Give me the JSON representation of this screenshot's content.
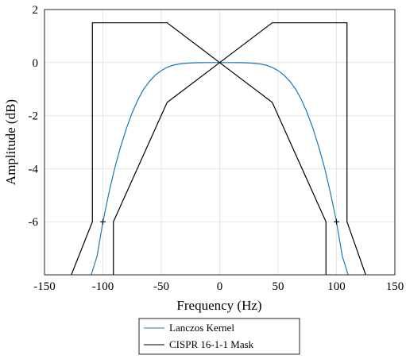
{
  "chart_data": {
    "type": "line",
    "xlabel": "Frequency (Hz)",
    "ylabel": "Amplitude (dB)",
    "xlim": [
      -150,
      150
    ],
    "ylim": [
      -8,
      2
    ],
    "x_ticks": [
      -150,
      -100,
      -50,
      0,
      50,
      100,
      150
    ],
    "x_tick_labels": [
      "-150",
      "-100",
      "-50",
      "0",
      "50",
      "100",
      "150"
    ],
    "y_ticks": [
      2,
      0,
      -2,
      -4,
      -6
    ],
    "y_tick_labels": [
      "2",
      "0",
      "-2",
      "-4",
      "-6"
    ],
    "grid": true,
    "legend_position": "bottom-outside",
    "series": [
      {
        "name": "Lanczos Kernel",
        "color": "#1f77b4",
        "style": "line",
        "x": [
          -110,
          -105,
          -100,
          -95,
          -90,
          -85,
          -80,
          -75,
          -70,
          -65,
          -60,
          -55,
          -50,
          -45,
          -40,
          -35,
          -30,
          -25,
          -20,
          -15,
          -10,
          -5,
          0,
          5,
          10,
          15,
          20,
          25,
          30,
          35,
          40,
          45,
          50,
          55,
          60,
          65,
          70,
          75,
          80,
          85,
          90,
          95,
          100,
          105,
          110
        ],
        "y": [
          -8.0,
          -7.3,
          -6.0,
          -4.95,
          -4.0,
          -3.2,
          -2.5,
          -1.9,
          -1.4,
          -1.0,
          -0.7,
          -0.47,
          -0.3,
          -0.18,
          -0.1,
          -0.055,
          -0.028,
          -0.013,
          -0.005,
          -0.002,
          -0.0005,
          0,
          0,
          0,
          -0.0005,
          -0.002,
          -0.005,
          -0.013,
          -0.028,
          -0.055,
          -0.1,
          -0.18,
          -0.3,
          -0.47,
          -0.7,
          -1.0,
          -1.4,
          -1.9,
          -2.5,
          -3.2,
          -4.0,
          -4.95,
          -6.0,
          -7.3,
          -8.0
        ]
      },
      {
        "name": "CISPR 16-1-1 Mask",
        "color": "#000000",
        "style": "line",
        "segments": [
          {
            "x": [
              -127,
              -109,
              -109,
              -45,
              0,
              45,
              91,
              91
            ],
            "y": [
              -8.0,
              -6.0,
              1.5,
              1.5,
              0,
              -1.5,
              -6.0,
              -8.0
            ]
          },
          {
            "x": [
              -91,
              -91,
              -45,
              0,
              45,
              109,
              109,
              125
            ],
            "y": [
              -8.0,
              -6.0,
              -1.5,
              0,
              1.5,
              1.5,
              -6.0,
              -8.0
            ]
          }
        ]
      }
    ],
    "markers": [
      {
        "x": -100,
        "y": -6,
        "symbol": "+"
      },
      {
        "x": 100,
        "y": -6,
        "symbol": "+"
      }
    ]
  }
}
